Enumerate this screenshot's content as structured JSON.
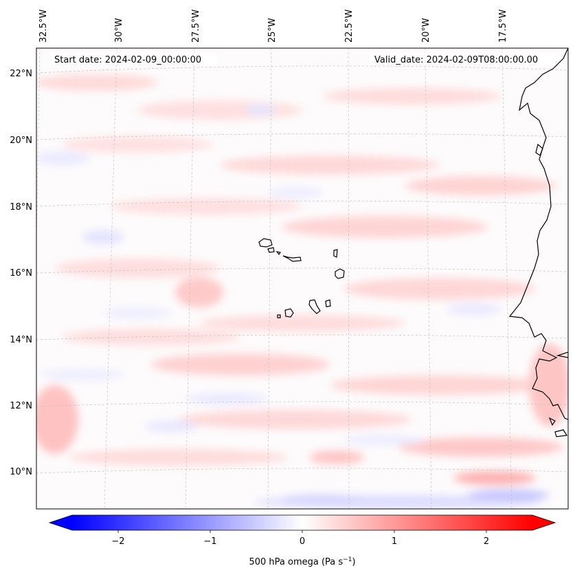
{
  "map": {
    "start_label": "Start date: 2024-02-09_00:00:00",
    "valid_label": "Valid_date: 2024-02-09T08:00:00.00",
    "lon_labels": [
      "32.5°W",
      "30°W",
      "27.5°W",
      "25°W",
      "22.5°W",
      "20°W",
      "17.5°W"
    ],
    "lat_labels": [
      "22°N",
      "20°N",
      "18°N",
      "16°N",
      "14°N",
      "12°N",
      "10°N"
    ],
    "field": "500 hPa omega",
    "field_range": [
      -2.5,
      2.5
    ],
    "gridlines": true,
    "colormap": "bwr",
    "colors": {
      "min": "#0000ff",
      "mid": "#ffffff",
      "max": "#ff0000",
      "coast": "#000000",
      "grid": "#bbbbbb"
    }
  },
  "colorbar": {
    "ticks": [
      "−2",
      "−1",
      "0",
      "1",
      "2"
    ],
    "label_main": "500 hPa omega (Pa s",
    "label_sup": "−1",
    "label_end": ")",
    "extend": "both"
  }
}
